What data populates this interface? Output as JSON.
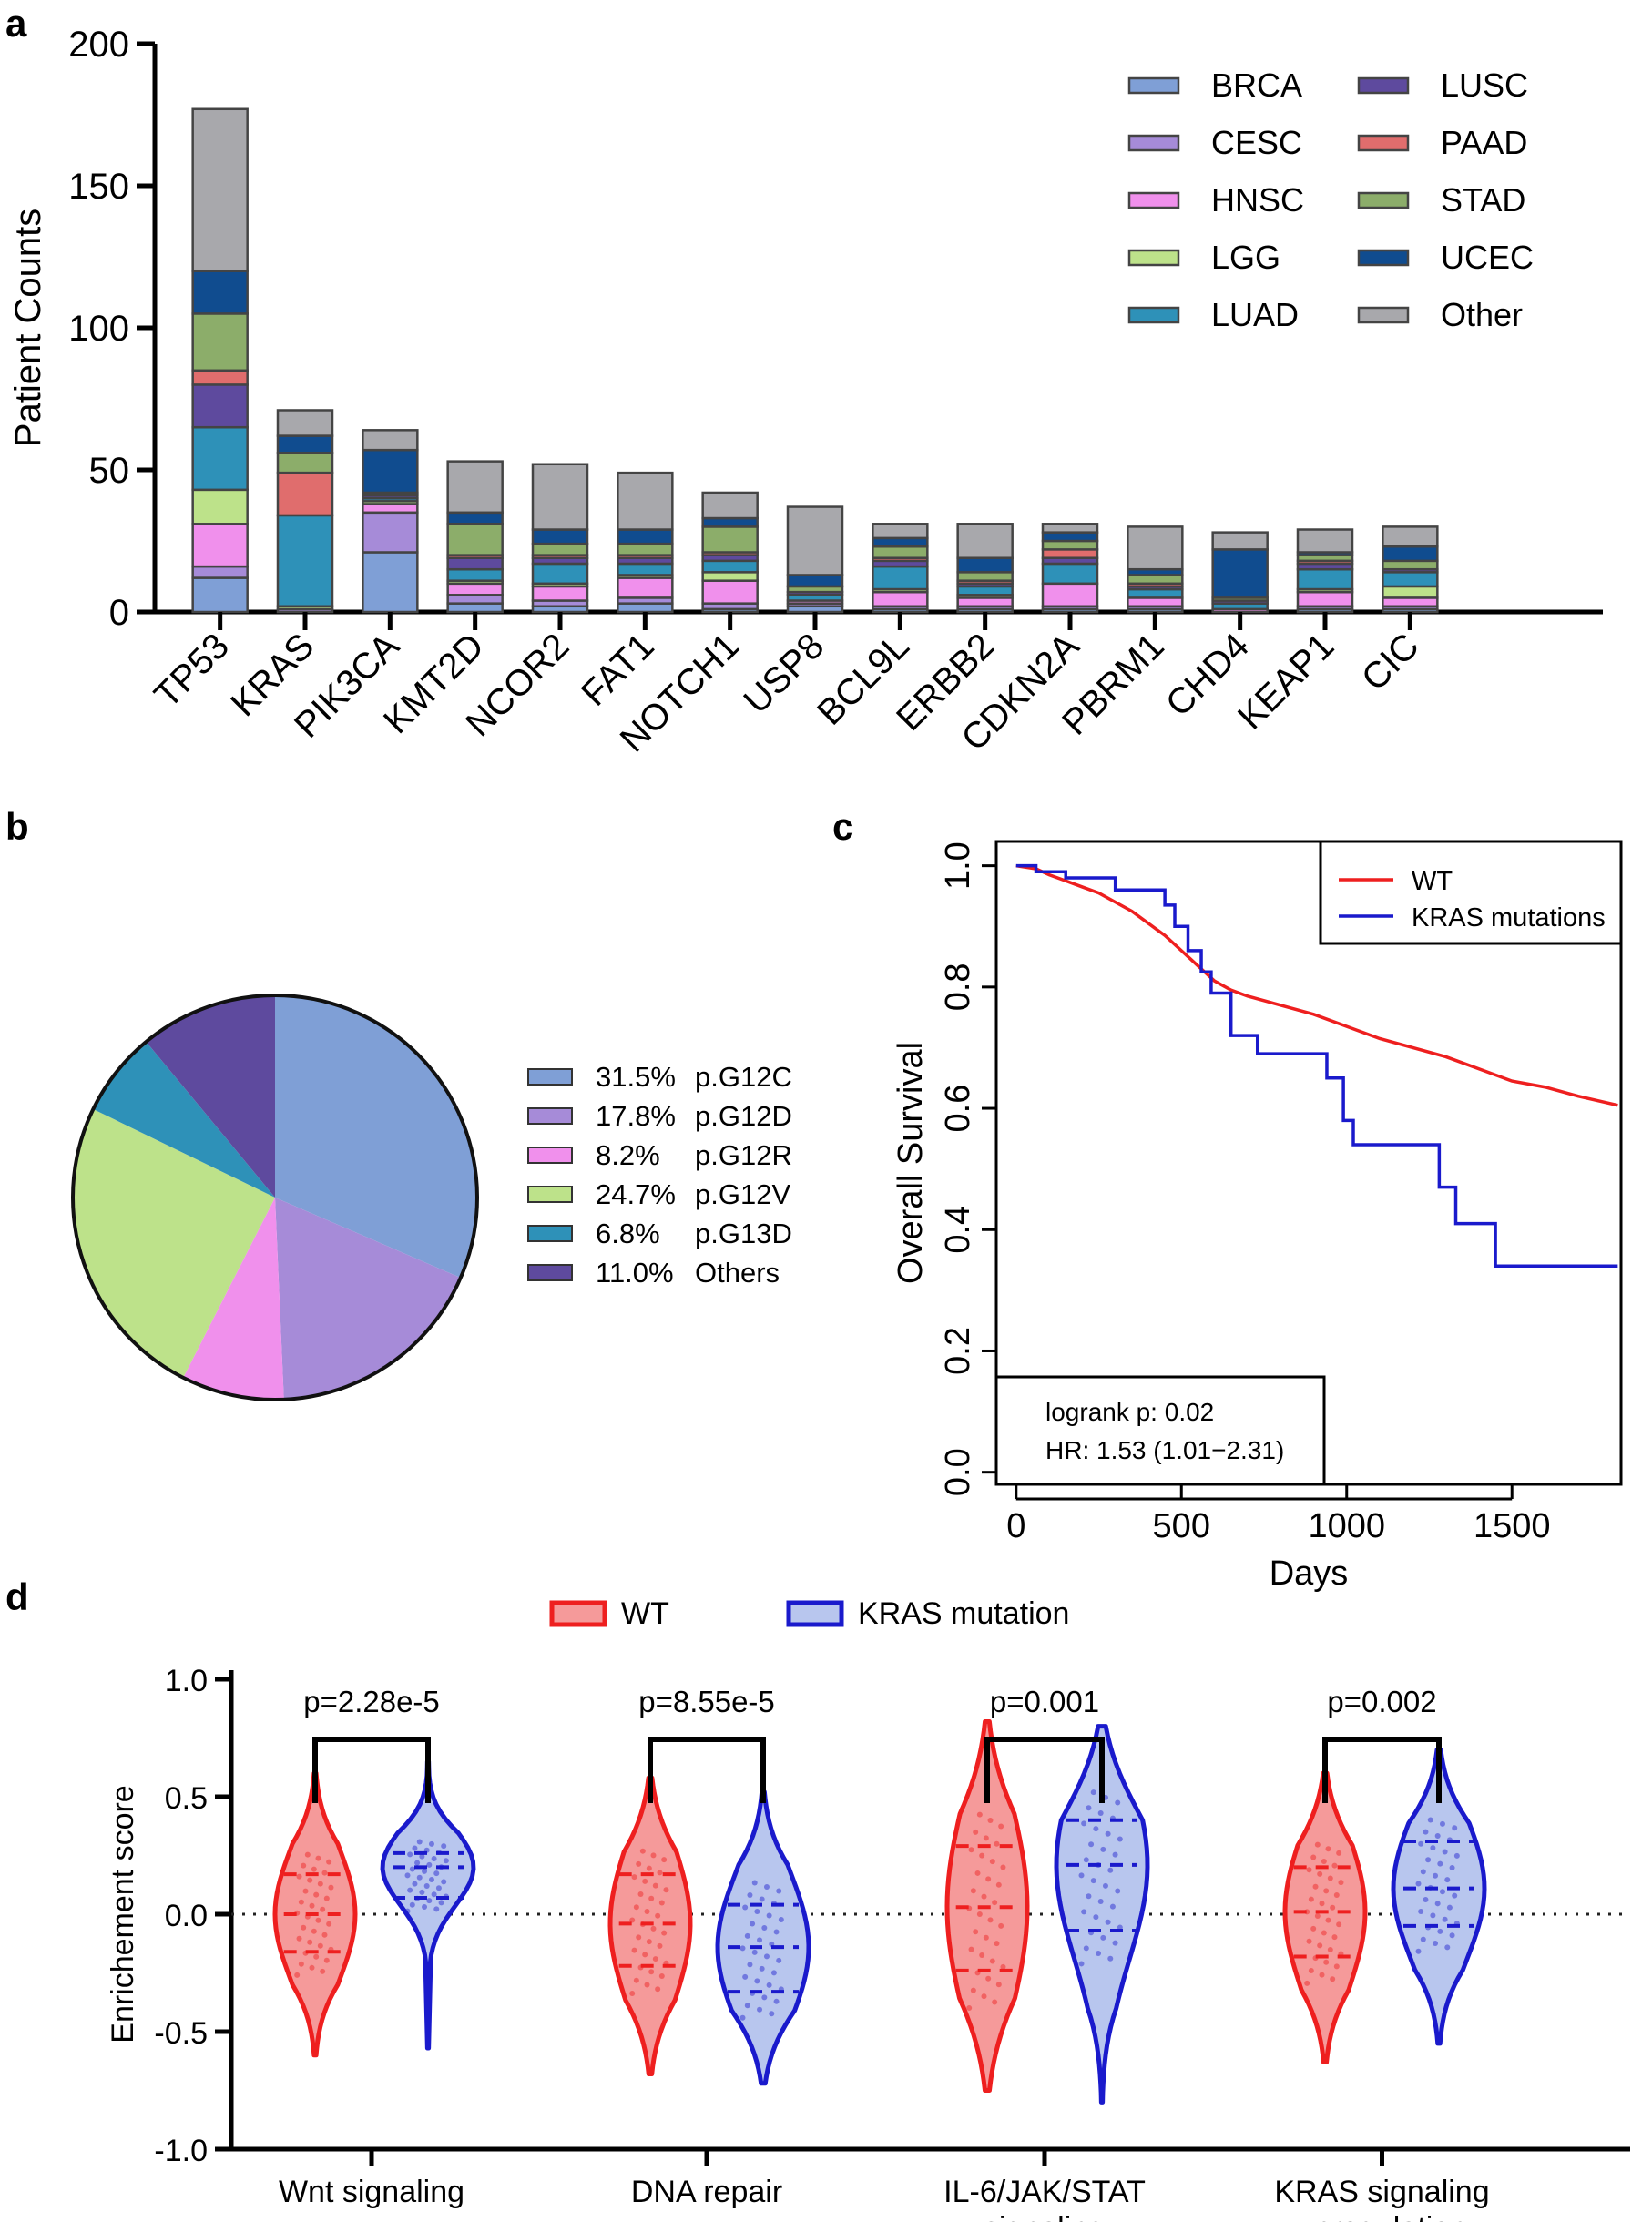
{
  "panels": {
    "a": "a",
    "b": "b",
    "c": "c",
    "d": "d"
  },
  "colors": {
    "BRCA": "#7f9fd6",
    "CESC": "#a68bd8",
    "HNSC": "#f090ec",
    "LGG": "#bde28a",
    "LUAD": "#2e91b8",
    "LUSC": "#5e4a9e",
    "PAAD": "#e06d6d",
    "STAD": "#8cad6a",
    "UCEC": "#104c8f",
    "Other": "#a8a8ac",
    "wt_red": "#ee1f1f",
    "kras_blue": "#1a1acc",
    "wt_fill": "#f59a9a",
    "kras_fill": "#b8c6ee",
    "pie": [
      "#7f9fd6",
      "#a68bd8",
      "#f090ec",
      "#bde28a",
      "#2e91b8",
      "#5e4a9e"
    ]
  },
  "chart_data": [
    {
      "panel": "a",
      "type": "bar",
      "stacked": true,
      "ylabel": "Patient Counts",
      "ylim": [
        0,
        200
      ],
      "yticks": [
        "0",
        "50",
        "100",
        "150",
        "200"
      ],
      "ytick_values": [
        0,
        50,
        100,
        150,
        200
      ],
      "categories": [
        "TP53",
        "KRAS",
        "PIK3CA",
        "KMT2D",
        "NCOR2",
        "FAT1",
        "NOTCH1",
        "USP8",
        "BCL9L",
        "ERBB2",
        "CDKN2A",
        "PBRM1",
        "CHD4",
        "KEAP1",
        "CIC"
      ],
      "legend": [
        "BRCA",
        "CESC",
        "HNSC",
        "LGG",
        "LUAD",
        "LUSC",
        "PAAD",
        "STAD",
        "UCEC",
        "Other"
      ],
      "series": [
        {
          "name": "BRCA",
          "values": [
            12,
            0,
            21,
            3,
            2,
            3,
            1,
            2,
            1,
            1,
            1,
            1,
            0,
            1,
            1
          ]
        },
        {
          "name": "CESC",
          "values": [
            4,
            1,
            14,
            3,
            2,
            2,
            2,
            1,
            1,
            1,
            1,
            1,
            0,
            1,
            1
          ]
        },
        {
          "name": "HNSC",
          "values": [
            15,
            0,
            3,
            4,
            5,
            7,
            8,
            1,
            5,
            3,
            8,
            3,
            1,
            5,
            3
          ]
        },
        {
          "name": "LGG",
          "values": [
            12,
            1,
            1,
            1,
            1,
            1,
            3,
            0,
            1,
            1,
            0,
            0,
            0,
            1,
            4
          ]
        },
        {
          "name": "LUAD",
          "values": [
            22,
            32,
            1,
            4,
            7,
            4,
            4,
            2,
            8,
            3,
            7,
            3,
            2,
            7,
            5
          ]
        },
        {
          "name": "LUSC",
          "values": [
            15,
            0,
            1,
            4,
            2,
            2,
            2,
            1,
            2,
            1,
            2,
            1,
            1,
            2,
            1
          ]
        },
        {
          "name": "PAAD",
          "values": [
            5,
            15,
            0,
            1,
            1,
            1,
            1,
            0,
            1,
            1,
            3,
            1,
            0,
            1,
            0
          ]
        },
        {
          "name": "STAD",
          "values": [
            20,
            7,
            1,
            11,
            4,
            4,
            9,
            2,
            4,
            3,
            3,
            3,
            1,
            2,
            3
          ]
        },
        {
          "name": "UCEC",
          "values": [
            15,
            6,
            15,
            4,
            5,
            5,
            3,
            4,
            3,
            5,
            3,
            2,
            17,
            1,
            5
          ]
        },
        {
          "name": "Other",
          "values": [
            57,
            9,
            7,
            18,
            23,
            20,
            9,
            24,
            5,
            12,
            3,
            15,
            6,
            8,
            7
          ]
        }
      ]
    },
    {
      "panel": "b",
      "type": "pie",
      "labels": [
        "p.G12C",
        "p.G12D",
        "p.G12R",
        "p.G12V",
        "p.G13D",
        "Others"
      ],
      "values": [
        31.5,
        17.8,
        8.2,
        24.7,
        6.8,
        11.0
      ],
      "legend_pct": [
        "31.5%",
        "17.8%",
        "8.2%",
        "24.7%",
        "6.8%",
        "11.0%"
      ]
    },
    {
      "panel": "c",
      "type": "line",
      "xlabel": "Days",
      "ylabel": "Overall Survival",
      "xlim": [
        -60,
        1830
      ],
      "ylim": [
        -0.02,
        1.04
      ],
      "xticks": [
        "0",
        "500",
        "1000",
        "1500"
      ],
      "xtick_values": [
        0,
        500,
        1000,
        1500
      ],
      "yticks": [
        "0.0",
        "0.2",
        "0.4",
        "0.6",
        "0.8",
        "1.0"
      ],
      "ytick_values": [
        0.0,
        0.2,
        0.4,
        0.6,
        0.8,
        1.0
      ],
      "legend": [
        "WT",
        "KRAS mutations"
      ],
      "annotation": [
        "logrank p: 0.02",
        "HR: 1.53 (1.01−2.31)"
      ],
      "series": [
        {
          "name": "WT",
          "x": [
            0,
            60,
            100,
            150,
            200,
            250,
            300,
            350,
            400,
            450,
            500,
            550,
            600,
            650,
            700,
            800,
            900,
            1000,
            1100,
            1200,
            1300,
            1400,
            1500,
            1600,
            1700,
            1820
          ],
          "y": [
            1.0,
            0.995,
            0.985,
            0.975,
            0.965,
            0.955,
            0.94,
            0.925,
            0.905,
            0.885,
            0.86,
            0.835,
            0.81,
            0.795,
            0.785,
            0.77,
            0.755,
            0.735,
            0.715,
            0.7,
            0.685,
            0.665,
            0.645,
            0.635,
            0.62,
            0.605
          ]
        },
        {
          "name": "KRAS mutations",
          "x": [
            0,
            60,
            60,
            150,
            150,
            300,
            300,
            450,
            450,
            480,
            480,
            520,
            520,
            560,
            560,
            590,
            590,
            650,
            650,
            730,
            730,
            940,
            940,
            990,
            990,
            1020,
            1020,
            1280,
            1280,
            1330,
            1330,
            1450,
            1450,
            1820
          ],
          "y": [
            1.0,
            1.0,
            0.99,
            0.99,
            0.98,
            0.98,
            0.96,
            0.96,
            0.935,
            0.935,
            0.9,
            0.9,
            0.86,
            0.86,
            0.825,
            0.825,
            0.79,
            0.79,
            0.72,
            0.72,
            0.69,
            0.69,
            0.65,
            0.65,
            0.58,
            0.58,
            0.54,
            0.54,
            0.47,
            0.47,
            0.41,
            0.41,
            0.34,
            0.34
          ]
        }
      ]
    },
    {
      "panel": "d",
      "type": "violin",
      "ylabel": "Enrichement score",
      "ylim": [
        -1.0,
        1.0
      ],
      "yticks": [
        "1.0",
        "0.5",
        "0.0",
        "-0.5",
        "-1.0"
      ],
      "ytick_values": [
        1.0,
        0.5,
        0.0,
        -0.5,
        -1.0
      ],
      "legend": [
        "WT",
        "KRAS mutation"
      ],
      "groups": [
        {
          "label": [
            "Wnt signaling"
          ],
          "p": "p=2.28e-5",
          "wt": {
            "min": -0.6,
            "max": 0.6,
            "q1": -0.16,
            "median": 0.0,
            "q3": 0.17
          },
          "kras": {
            "min": -0.57,
            "max": 0.65,
            "q1": 0.07,
            "median": 0.2,
            "q3": 0.26
          }
        },
        {
          "label": [
            "DNA repair"
          ],
          "p": "p=8.55e-5",
          "wt": {
            "min": -0.68,
            "max": 0.58,
            "q1": -0.22,
            "median": -0.04,
            "q3": 0.17
          },
          "kras": {
            "min": -0.72,
            "max": 0.52,
            "q1": -0.33,
            "median": -0.14,
            "q3": 0.04
          }
        },
        {
          "label": [
            "IL-6/JAK/STAT",
            "signaling"
          ],
          "p": "p=0.001",
          "wt": {
            "min": -0.75,
            "max": 0.82,
            "q1": -0.24,
            "median": 0.03,
            "q3": 0.29
          },
          "kras": {
            "min": -0.8,
            "max": 0.8,
            "q1": -0.07,
            "median": 0.21,
            "q3": 0.4
          }
        },
        {
          "label": [
            "KRAS signaling",
            "upregulation"
          ],
          "p": "p=0.002",
          "wt": {
            "min": -0.63,
            "max": 0.6,
            "q1": -0.18,
            "median": 0.01,
            "q3": 0.2
          },
          "kras": {
            "min": -0.55,
            "max": 0.7,
            "q1": -0.05,
            "median": 0.11,
            "q3": 0.31
          }
        }
      ]
    }
  ]
}
